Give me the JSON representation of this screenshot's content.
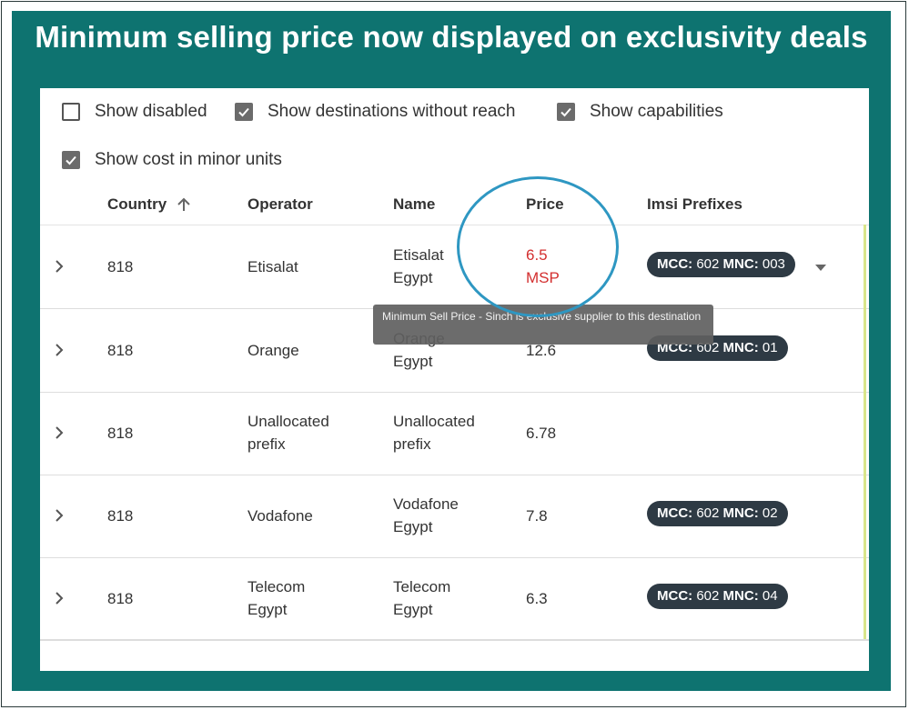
{
  "headline": "Minimum selling price now displayed on exclusivity deals",
  "options": [
    {
      "label": "Show disabled",
      "checked": false
    },
    {
      "label": "Show destinations without reach",
      "checked": true
    },
    {
      "label": "Show capabilities",
      "checked": true
    },
    {
      "label": "Show cost in minor units",
      "checked": true
    }
  ],
  "columns": {
    "country": "Country",
    "operator": "Operator",
    "name": "Name",
    "price": "Price",
    "imsi": "Imsi Prefixes"
  },
  "sort": {
    "column": "Country",
    "direction": "ascending",
    "icon": "arrow-up-icon"
  },
  "rows": [
    {
      "country": "818",
      "operator": [
        "Etisalat"
      ],
      "name": [
        "Etisalat",
        "Egypt"
      ],
      "price": [
        "6.5",
        "MSP"
      ],
      "price_color": "#d32f2f",
      "imsi": {
        "mcc_label": "MCC:",
        "mcc": "602",
        "mnc_label": "MNC:",
        "mnc": "003"
      },
      "has_dropdown": true
    },
    {
      "country": "818",
      "operator": [
        "Orange"
      ],
      "name": [
        "Orange",
        "Egypt"
      ],
      "price": [
        "12.6"
      ],
      "imsi": {
        "mcc_label": "MCC:",
        "mcc": "602",
        "mnc_label": "MNC:",
        "mnc": "01"
      }
    },
    {
      "country": "818",
      "operator": [
        "Unallocated",
        "prefix"
      ],
      "name": [
        "Unallocated",
        "prefix"
      ],
      "price": [
        "6.78"
      ],
      "imsi": null
    },
    {
      "country": "818",
      "operator": [
        "Vodafone"
      ],
      "name": [
        "Vodafone",
        "Egypt"
      ],
      "price": [
        "7.8"
      ],
      "imsi": {
        "mcc_label": "MCC:",
        "mcc": "602",
        "mnc_label": "MNC:",
        "mnc": "02"
      }
    },
    {
      "country": "818",
      "operator": [
        "Telecom",
        "Egypt"
      ],
      "name": [
        "Telecom",
        "Egypt"
      ],
      "price": [
        "6.3"
      ],
      "imsi": {
        "mcc_label": "MCC:",
        "mcc": "602",
        "mnc_label": "MNC:",
        "mnc": "04"
      }
    }
  ],
  "tooltip": "Minimum Sell Price - Sinch is exclusive supplier to this destination",
  "colors": {
    "frame": "#0e7370",
    "highlight_circle": "#2e97c2",
    "chip": "#2e3a44",
    "msp_price": "#d32f2f"
  }
}
